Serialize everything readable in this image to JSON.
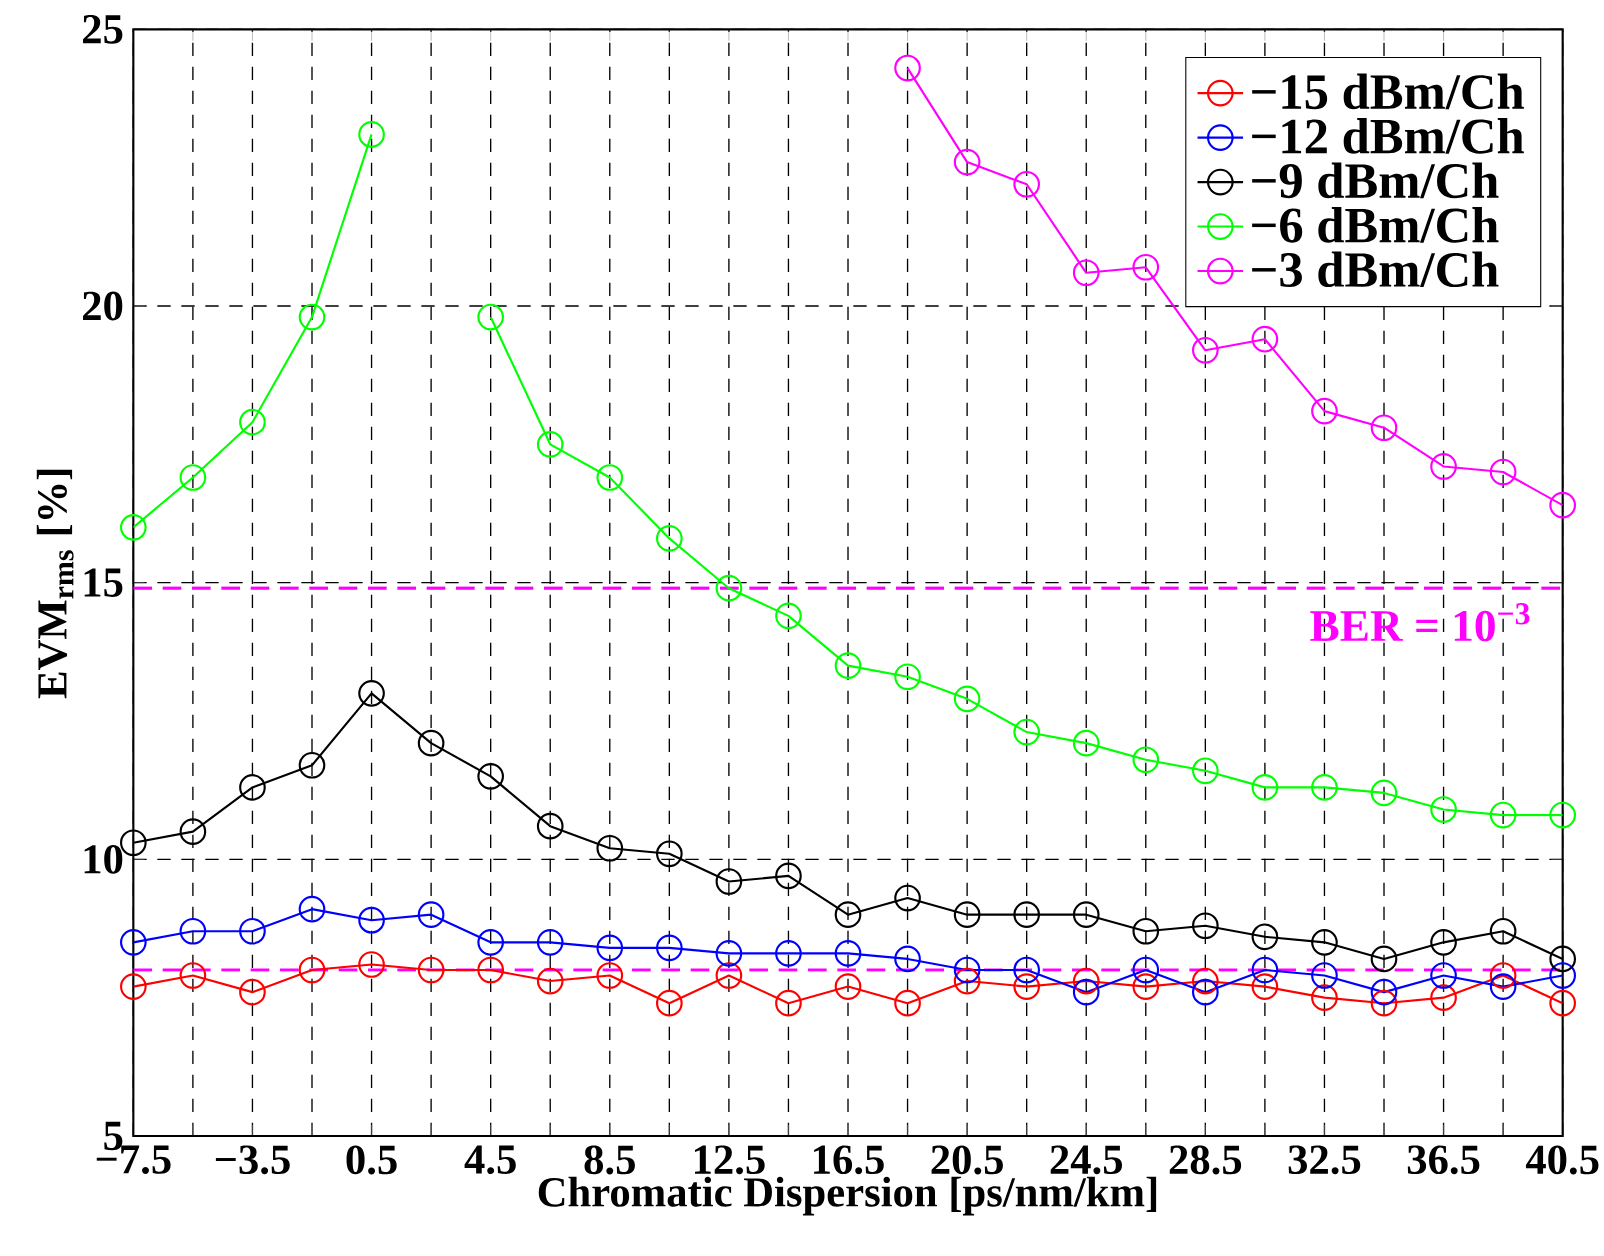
{
  "chart_data": {
    "type": "line",
    "xlabel": "Chromatic Dispersion [ps/nm/km]",
    "ylabel": "EVM$_{rms}$ [%]",
    "x": [
      -7.5,
      -5.5,
      -3.5,
      -1.5,
      0.5,
      2.5,
      4.5,
      6.5,
      8.5,
      10.5,
      12.5,
      14.5,
      16.5,
      18.5,
      20.5,
      22.5,
      24.5,
      26.5,
      28.5,
      30.5,
      32.5,
      34.5,
      36.5,
      38.5,
      40.5
    ],
    "series": [
      {
        "name": "−15 dBm/Ch",
        "color": "#ff0000",
        "values": [
          7.7,
          7.9,
          7.6,
          8.0,
          8.1,
          8.0,
          8.0,
          7.8,
          7.9,
          7.4,
          7.9,
          7.4,
          7.7,
          7.4,
          7.8,
          7.7,
          7.8,
          7.7,
          7.8,
          7.7,
          7.5,
          7.4,
          7.5,
          7.9,
          7.4
        ]
      },
      {
        "name": "−12 dBm/Ch",
        "color": "#0000ff",
        "values": [
          8.5,
          8.7,
          8.7,
          9.1,
          8.9,
          9.0,
          8.5,
          8.5,
          8.4,
          8.4,
          8.3,
          8.3,
          8.3,
          8.2,
          8.0,
          8.0,
          7.6,
          8.0,
          7.6,
          8.0,
          7.9,
          7.6,
          7.9,
          7.7,
          7.9
        ]
      },
      {
        "name": "−9 dBm/Ch",
        "color": "#000000",
        "values": [
          10.3,
          10.5,
          11.3,
          11.7,
          13.0,
          12.1,
          11.5,
          10.6,
          10.2,
          10.1,
          9.6,
          9.7,
          9.0,
          9.3,
          9.0,
          9.0,
          9.0,
          8.7,
          8.8,
          8.6,
          8.5,
          8.2,
          8.5,
          8.7,
          8.2
        ]
      },
      {
        "name": "−6 dBm/Ch",
        "color": "#00ff00",
        "values": [
          16.0,
          16.9,
          17.9,
          19.8,
          23.1,
          null,
          19.8,
          17.5,
          16.9,
          15.8,
          14.9,
          14.4,
          13.5,
          13.3,
          12.9,
          12.3,
          12.1,
          11.8,
          11.6,
          11.3,
          11.3,
          11.2,
          10.9,
          10.8,
          10.8
        ]
      },
      {
        "name": "−3 dBm/Ch",
        "color": "#ff00ff",
        "values": [
          null,
          null,
          null,
          null,
          null,
          null,
          null,
          null,
          null,
          null,
          null,
          null,
          null,
          24.3,
          22.6,
          22.2,
          20.6,
          20.7,
          19.2,
          19.4,
          18.1,
          17.8,
          17.1,
          17.0,
          16.4
        ]
      }
    ],
    "xlim": [
      -7.5,
      40.5
    ],
    "xticks": [
      {
        "value": -7.5,
        "label": "−7.5"
      },
      {
        "value": -5.5,
        "label": null
      },
      {
        "value": -3.5,
        "label": "−3.5"
      },
      {
        "value": -1.5,
        "label": null
      },
      0.5,
      {
        "value": 2.5,
        "label": null
      },
      4.5,
      {
        "value": 6.5,
        "label": null
      },
      8.5,
      {
        "value": 10.5,
        "label": null
      },
      12.5,
      {
        "value": 14.5,
        "label": null
      },
      16.5,
      {
        "value": 18.5,
        "label": null
      },
      20.5,
      {
        "value": 22.5,
        "label": null
      },
      24.5,
      {
        "value": 26.5,
        "label": null
      },
      28.5,
      {
        "value": 30.5,
        "label": null
      },
      32.5,
      {
        "value": 34.5,
        "label": null
      },
      36.5,
      {
        "value": 38.5,
        "label": null
      },
      40.5
    ],
    "ylim": [
      5,
      25
    ],
    "yticks": [
      5,
      10,
      15,
      20,
      25
    ],
    "ref_lines": [
      {
        "axis": "y",
        "value": 14.9,
        "color": "#ff00ff",
        "line_style": "dashed"
      },
      {
        "axis": "y",
        "value": 8.0,
        "color": "#ff00ff",
        "line_style": "dashed"
      }
    ],
    "annotations": [
      "BER = 10$^{−3}$"
    ],
    "grid": true,
    "legend": "top right",
    "marker": "circle",
    "line_style": "solid"
  }
}
